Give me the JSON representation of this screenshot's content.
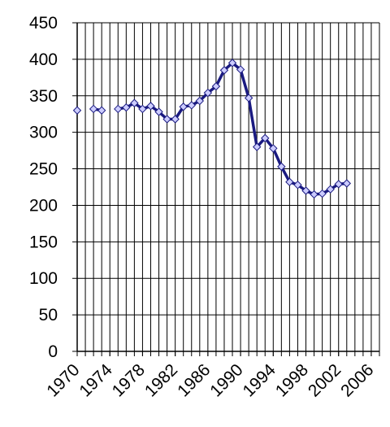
{
  "chart_data": {
    "type": "line",
    "x": [
      1970,
      1971,
      1972,
      1973,
      1974,
      1975,
      1976,
      1977,
      1978,
      1979,
      1980,
      1981,
      1982,
      1983,
      1984,
      1985,
      1986,
      1987,
      1988,
      1989,
      1990,
      1991,
      1992,
      1993,
      1994,
      1995,
      1996,
      1997,
      1998,
      1999,
      2000,
      2001,
      2002,
      2003
    ],
    "series": [
      {
        "color": "#1a1a80",
        "marker_fill": "#ccccff",
        "values": [
          330,
          null,
          332,
          330,
          null,
          332,
          334,
          340,
          332,
          336,
          328,
          318,
          318,
          335,
          337,
          343,
          354,
          363,
          385,
          395,
          386,
          347,
          280,
          292,
          278,
          253,
          232,
          228,
          220,
          215,
          216,
          222,
          229,
          230
        ]
      }
    ],
    "xlim": [
      1970,
      2007
    ],
    "xticks": [
      1970,
      1974,
      1978,
      1982,
      1986,
      1990,
      1994,
      1998,
      2002,
      2006
    ],
    "ylim": [
      0,
      450
    ],
    "yticks": [
      0,
      50,
      100,
      150,
      200,
      250,
      300,
      350,
      400,
      450
    ],
    "grid": true
  }
}
